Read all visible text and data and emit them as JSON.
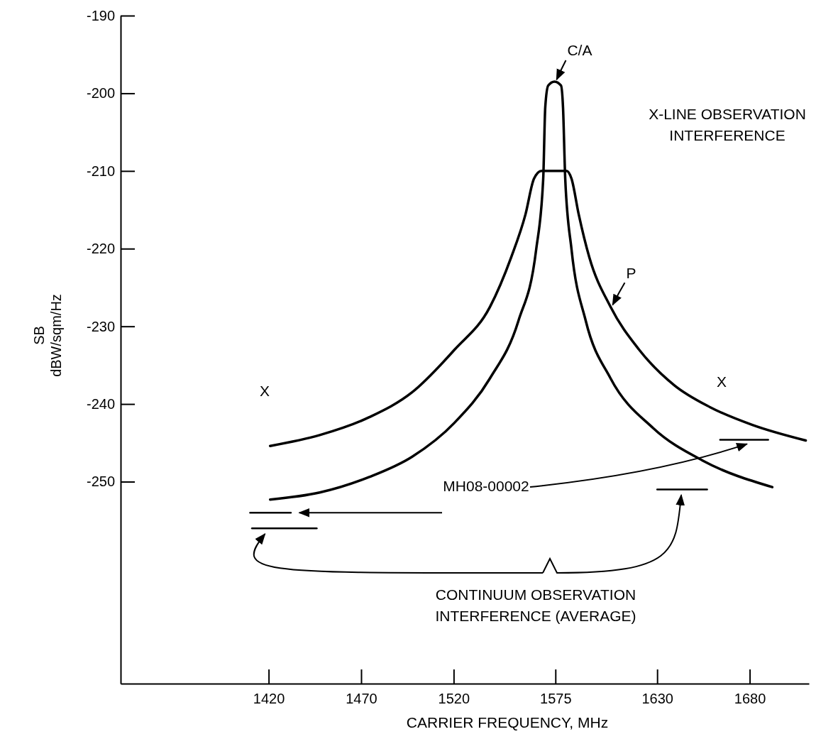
{
  "chart_data": {
    "type": "line",
    "xlabel": "CARRIER FREQUENCY, MHz",
    "ylabel": "SB\ndBW/sqm/Hz",
    "xlim": [
      1340,
      1712
    ],
    "ylim": [
      -276,
      -190
    ],
    "xticks": [
      1420,
      1470,
      1520,
      1575,
      1630,
      1680
    ],
    "yticks": [
      -190,
      -200,
      -210,
      -220,
      -230,
      -240,
      -250
    ],
    "grid": false,
    "legend": false,
    "marker": "none",
    "line_style": "solid",
    "series": [
      {
        "name": "C/A",
        "color": "#000000",
        "x": [
          1420.8,
          1447.6,
          1474.4,
          1497.5,
          1520.5,
          1539.6,
          1555,
          1564.6,
          1568.4,
          1569.5,
          1571.1,
          1574.5,
          1578,
          1579.1,
          1580.3,
          1583.7,
          1591.4,
          1604.8,
          1627.8,
          1654.7,
          1692.2
        ],
        "values": [
          -252.3,
          -251.4,
          -249.4,
          -246.8,
          -242.4,
          -236.7,
          -229.3,
          -220.1,
          -211,
          -201.8,
          -199,
          -198.5,
          -199,
          -201.8,
          -211,
          -220.1,
          -229.3,
          -236.7,
          -243.1,
          -247.3,
          -250.7
        ]
      },
      {
        "name": "P",
        "color": "#000000",
        "x": [
          1420.8,
          1447.6,
          1474.4,
          1497.5,
          1520.5,
          1539.6,
          1551.1,
          1558.8,
          1563.4,
          1567.5,
          1574.5,
          1581,
          1583.7,
          1587.6,
          1593.3,
          1604.8,
          1620.2,
          1639.3,
          1658.5,
          1681.5,
          1710.3
        ],
        "values": [
          -245.4,
          -244,
          -241.7,
          -238.5,
          -233,
          -227.5,
          -221.1,
          -215.6,
          -211,
          -210,
          -210,
          -210,
          -211,
          -215.6,
          -221.1,
          -227.5,
          -233,
          -237.6,
          -240.4,
          -242.7,
          -244.7
        ]
      },
      {
        "color": "#000000",
        "x": [
          1410,
          1432
        ],
        "values": [
          -254,
          -254
        ]
      },
      {
        "color": "#000000",
        "x": [
          1411,
          1446
        ],
        "values": [
          -256,
          -256
        ]
      },
      {
        "color": "#000000",
        "x": [
          1630,
          1657
        ],
        "values": [
          -251,
          -251
        ]
      },
      {
        "color": "#000000",
        "x": [
          1664,
          1690
        ],
        "values": [
          -244.6,
          -244.6
        ]
      }
    ],
    "annotations": [
      "X-LINE OBSERVATION\nINTERFERENCE",
      "X",
      "X",
      "MH08-00002",
      "CONTINUUM OBSERVATION\nINTERFERENCE (AVERAGE)"
    ]
  }
}
